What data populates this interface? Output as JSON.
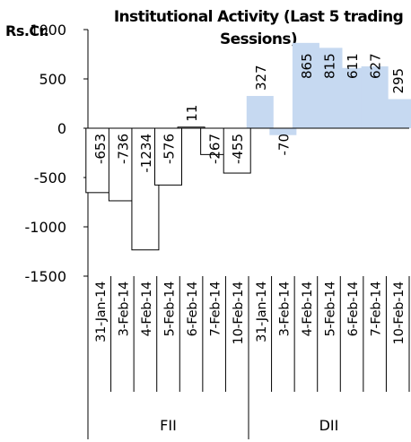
{
  "chart_data": {
    "type": "bar",
    "title_lines": [
      "Institutional Activity (Last 5 trading",
      "Sessions)"
    ],
    "unit_label": "Rs.Cr.",
    "ylim": [
      -1500,
      1000
    ],
    "yticks": [
      "1000",
      "500",
      "0",
      "-500",
      "-1000",
      "-1500"
    ],
    "ytick_values": [
      1000,
      500,
      0,
      -500,
      -1000,
      -1500
    ],
    "grid": false,
    "legend": "none",
    "groups": [
      {
        "name": "FII",
        "color": "#ffffff",
        "categories": [
          "31-Jan-14",
          "3-Feb-14",
          "4-Feb-14",
          "5-Feb-14",
          "6-Feb-14",
          "7-Feb-14",
          "10-Feb-14"
        ],
        "values": [
          -653,
          -736,
          -1234,
          -576,
          11,
          -267,
          -455
        ]
      },
      {
        "name": "DII",
        "color": "#c6d9f1",
        "categories": [
          "31-Jan-14",
          "3-Feb-14",
          "4-Feb-14",
          "5-Feb-14",
          "6-Feb-14",
          "7-Feb-14",
          "10-Feb-14"
        ],
        "values": [
          327,
          -70,
          865,
          815,
          611,
          627,
          295
        ]
      }
    ]
  }
}
